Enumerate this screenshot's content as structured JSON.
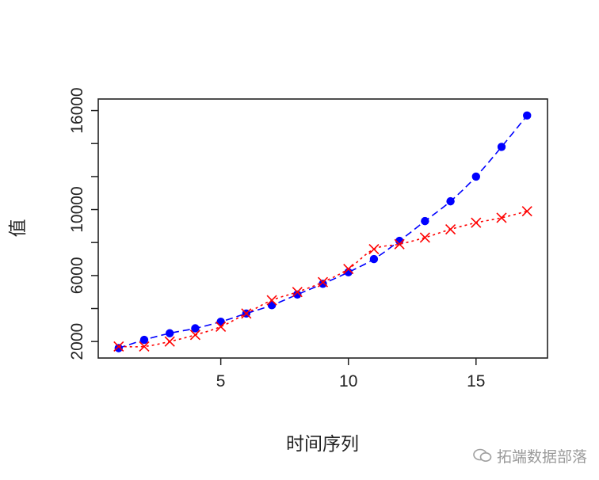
{
  "chart_data": {
    "type": "line",
    "xlabel": "时间序列",
    "ylabel": "值",
    "xlim": [
      0.2,
      17.8
    ],
    "ylim": [
      1000,
      16700
    ],
    "x_ticks": [
      5,
      10,
      15
    ],
    "y_ticks": [
      2000,
      4000,
      6000,
      8000,
      10000,
      12000,
      14000,
      16000
    ],
    "y_tick_labels": [
      "2000",
      "6000",
      "10000",
      "16000"
    ],
    "grid": false,
    "series": [
      {
        "color": "#0000ff",
        "marker": "filled-circle",
        "line": "dashed",
        "x": [
          1,
          2,
          3,
          4,
          5,
          6,
          7,
          8,
          9,
          10,
          11,
          12,
          13,
          14,
          15,
          16,
          17
        ],
        "y": [
          1600,
          2100,
          2500,
          2800,
          3200,
          3700,
          4200,
          4850,
          5500,
          6200,
          7000,
          8100,
          9300,
          10500,
          12000,
          13800,
          15700
        ]
      },
      {
        "color": "#ff0000",
        "marker": "cross",
        "line": "dotted",
        "x": [
          1,
          2,
          3,
          4,
          5,
          6,
          7,
          8,
          9,
          10,
          11,
          12,
          13,
          14,
          15,
          16,
          17
        ],
        "y": [
          1700,
          1700,
          2000,
          2400,
          2900,
          3700,
          4500,
          5000,
          5600,
          6400,
          7600,
          7900,
          8300,
          8800,
          9200,
          9500,
          9900
        ]
      }
    ]
  },
  "watermark": {
    "text": "拓端数据部落"
  }
}
